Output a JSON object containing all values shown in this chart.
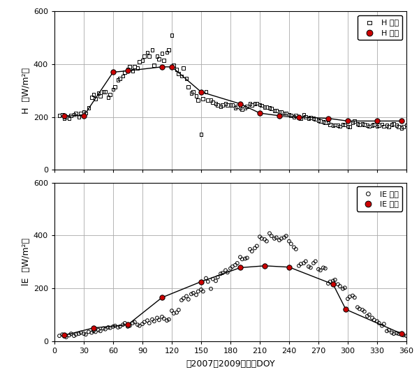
{
  "xlabel": "（2007〜2009年）　DOY",
  "ylabel_top": "H  （W/m²）",
  "ylabel_bottom": "lE  （W/m²）",
  "xlim": [
    0,
    360
  ],
  "ylim": [
    0,
    600
  ],
  "xticks": [
    0,
    30,
    60,
    90,
    120,
    150,
    180,
    210,
    240,
    270,
    300,
    330,
    360
  ],
  "yticks": [
    0,
    200,
    400,
    600
  ],
  "H_obs_x": [
    5,
    8,
    10,
    12,
    15,
    17,
    20,
    22,
    25,
    27,
    30,
    32,
    35,
    38,
    40,
    42,
    45,
    47,
    50,
    52,
    55,
    57,
    60,
    62,
    65,
    67,
    70,
    72,
    75,
    77,
    80,
    82,
    85,
    87,
    90,
    92,
    95,
    97,
    100,
    102,
    105,
    107,
    110,
    112,
    115,
    117,
    120,
    122,
    125,
    127,
    130,
    132,
    135,
    137,
    140,
    142,
    145,
    147,
    150,
    152,
    155,
    157,
    160,
    162,
    165,
    167,
    170,
    172,
    175,
    177,
    180,
    182,
    185,
    187,
    190,
    192,
    195,
    197,
    200,
    202,
    205,
    207,
    210,
    212,
    215,
    217,
    220,
    222,
    225,
    227,
    230,
    232,
    235,
    237,
    240,
    242,
    245,
    247,
    250,
    252,
    255,
    257,
    260,
    262,
    265,
    267,
    270,
    272,
    275,
    277,
    280,
    282,
    285,
    287,
    290,
    292,
    295,
    297,
    300,
    302,
    305,
    307,
    310,
    312,
    315,
    317,
    320,
    322,
    325,
    327,
    330,
    332,
    335,
    337,
    340,
    342,
    345,
    347,
    350,
    352,
    355,
    357,
    360
  ],
  "H_obs_y": [
    205,
    210,
    195,
    200,
    195,
    205,
    210,
    215,
    200,
    215,
    220,
    215,
    235,
    275,
    285,
    270,
    290,
    280,
    295,
    295,
    275,
    285,
    305,
    315,
    340,
    345,
    355,
    370,
    380,
    390,
    375,
    390,
    385,
    410,
    415,
    430,
    445,
    430,
    455,
    395,
    430,
    420,
    440,
    415,
    445,
    455,
    510,
    395,
    380,
    365,
    355,
    385,
    345,
    315,
    290,
    295,
    280,
    265,
    135,
    270,
    295,
    265,
    265,
    255,
    250,
    245,
    240,
    245,
    250,
    245,
    245,
    245,
    235,
    240,
    235,
    230,
    235,
    240,
    250,
    245,
    250,
    252,
    247,
    244,
    238,
    238,
    235,
    232,
    225,
    225,
    220,
    218,
    215,
    215,
    210,
    205,
    200,
    205,
    200,
    195,
    210,
    200,
    195,
    198,
    195,
    192,
    188,
    185,
    183,
    180,
    178,
    172,
    168,
    170,
    168,
    165,
    172,
    170,
    165,
    163,
    180,
    185,
    175,
    172,
    175,
    172,
    168,
    165,
    168,
    172,
    165,
    168,
    173,
    165,
    168,
    163,
    172,
    175,
    168,
    163,
    158,
    163,
    170
  ],
  "H_calc_x": [
    10,
    30,
    60,
    75,
    110,
    120,
    150,
    190,
    210,
    230,
    250,
    280,
    300,
    330,
    355
  ],
  "H_calc_y": [
    205,
    205,
    370,
    375,
    390,
    390,
    295,
    250,
    215,
    205,
    200,
    195,
    185,
    185,
    185
  ],
  "lE_obs_x": [
    5,
    8,
    10,
    12,
    15,
    17,
    20,
    22,
    25,
    27,
    30,
    32,
    35,
    38,
    40,
    42,
    45,
    47,
    50,
    52,
    55,
    57,
    60,
    62,
    65,
    67,
    70,
    72,
    75,
    77,
    80,
    82,
    85,
    87,
    90,
    92,
    95,
    97,
    100,
    102,
    105,
    107,
    110,
    112,
    115,
    117,
    120,
    122,
    125,
    127,
    130,
    132,
    135,
    137,
    140,
    142,
    145,
    147,
    150,
    152,
    155,
    157,
    160,
    162,
    165,
    167,
    170,
    172,
    175,
    177,
    180,
    182,
    185,
    187,
    190,
    192,
    195,
    197,
    200,
    202,
    205,
    207,
    210,
    212,
    215,
    217,
    220,
    222,
    225,
    227,
    230,
    232,
    235,
    237,
    240,
    242,
    245,
    247,
    250,
    252,
    255,
    257,
    260,
    262,
    265,
    267,
    270,
    272,
    275,
    277,
    280,
    282,
    285,
    287,
    290,
    292,
    295,
    297,
    300,
    302,
    305,
    307,
    310,
    312,
    315,
    317,
    320,
    322,
    325,
    327,
    330,
    332,
    335,
    337,
    340,
    342,
    345,
    347,
    350,
    352,
    355,
    357,
    360
  ],
  "lE_obs_y": [
    20,
    25,
    18,
    15,
    22,
    28,
    20,
    25,
    28,
    32,
    28,
    25,
    35,
    32,
    38,
    35,
    42,
    38,
    48,
    45,
    52,
    50,
    55,
    58,
    52,
    55,
    62,
    68,
    55,
    58,
    68,
    72,
    62,
    58,
    65,
    72,
    78,
    68,
    82,
    75,
    88,
    80,
    92,
    85,
    78,
    82,
    115,
    105,
    108,
    118,
    155,
    162,
    170,
    158,
    178,
    182,
    175,
    188,
    195,
    188,
    238,
    225,
    198,
    235,
    228,
    242,
    255,
    258,
    268,
    260,
    275,
    282,
    288,
    295,
    318,
    310,
    312,
    315,
    348,
    340,
    352,
    360,
    395,
    388,
    385,
    378,
    408,
    398,
    388,
    392,
    382,
    388,
    392,
    398,
    378,
    368,
    355,
    348,
    285,
    292,
    295,
    302,
    282,
    278,
    295,
    302,
    272,
    268,
    278,
    275,
    218,
    225,
    228,
    232,
    215,
    208,
    198,
    202,
    160,
    168,
    172,
    165,
    128,
    122,
    118,
    112,
    95,
    100,
    88,
    80,
    75,
    68,
    58,
    65,
    38,
    42,
    32,
    28,
    30,
    28,
    25,
    22,
    20
  ],
  "lE_calc_x": [
    10,
    40,
    75,
    110,
    150,
    190,
    215,
    240,
    285,
    298,
    355
  ],
  "lE_calc_y": [
    22,
    50,
    62,
    165,
    225,
    278,
    285,
    280,
    215,
    120,
    28
  ],
  "calc_color": "#cc0000",
  "obs_color": "#000000",
  "line_color": "#000000",
  "bg_color": "#ffffff",
  "grid_color": "#aaaaaa",
  "legend_top": [
    "H 観測",
    "H 計算"
  ],
  "legend_bottom": [
    "lE 観測",
    "lE 計算"
  ]
}
